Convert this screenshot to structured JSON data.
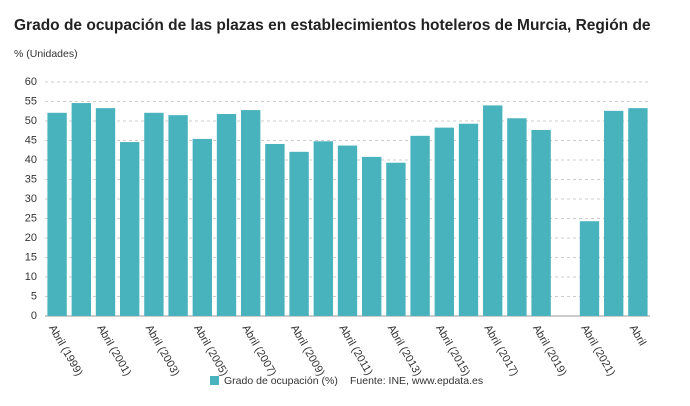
{
  "chart_data": {
    "type": "bar",
    "title": "Grado de ocupación de las plazas en establecimientos hoteleros de Murcia, Región de",
    "y_label": "% (Unidades)",
    "categories": [
      "Abril (1999)",
      null,
      "Abril (2001)",
      null,
      "Abril (2003)",
      null,
      "Abril (2005)",
      null,
      "Abril (2007)",
      null,
      "Abril (2009)",
      null,
      "Abril (2011)",
      null,
      "Abril (2013)",
      null,
      "Abril (2015)",
      null,
      "Abril (2017)",
      null,
      "Abril (2019)",
      null,
      "Abril (2021)",
      null,
      "Abril"
    ],
    "series": [
      {
        "name": "Grado de ocupación (%)",
        "color": "#48b2bd",
        "values": [
          52.1,
          54.6,
          53.3,
          44.6,
          52.1,
          51.5,
          45.4,
          51.8,
          52.8,
          44.1,
          42.1,
          44.8,
          43.7,
          40.8,
          39.3,
          46.2,
          48.3,
          49.3,
          54.0,
          50.7,
          47.7,
          null,
          24.3,
          52.6,
          53.3
        ]
      }
    ],
    "ylim": [
      0,
      60
    ],
    "yticks": [
      0,
      5,
      10,
      15,
      20,
      25,
      30,
      35,
      40,
      45,
      50,
      55,
      60
    ],
    "grid": true,
    "source": "Fuente: INE, www.epdata.es"
  }
}
